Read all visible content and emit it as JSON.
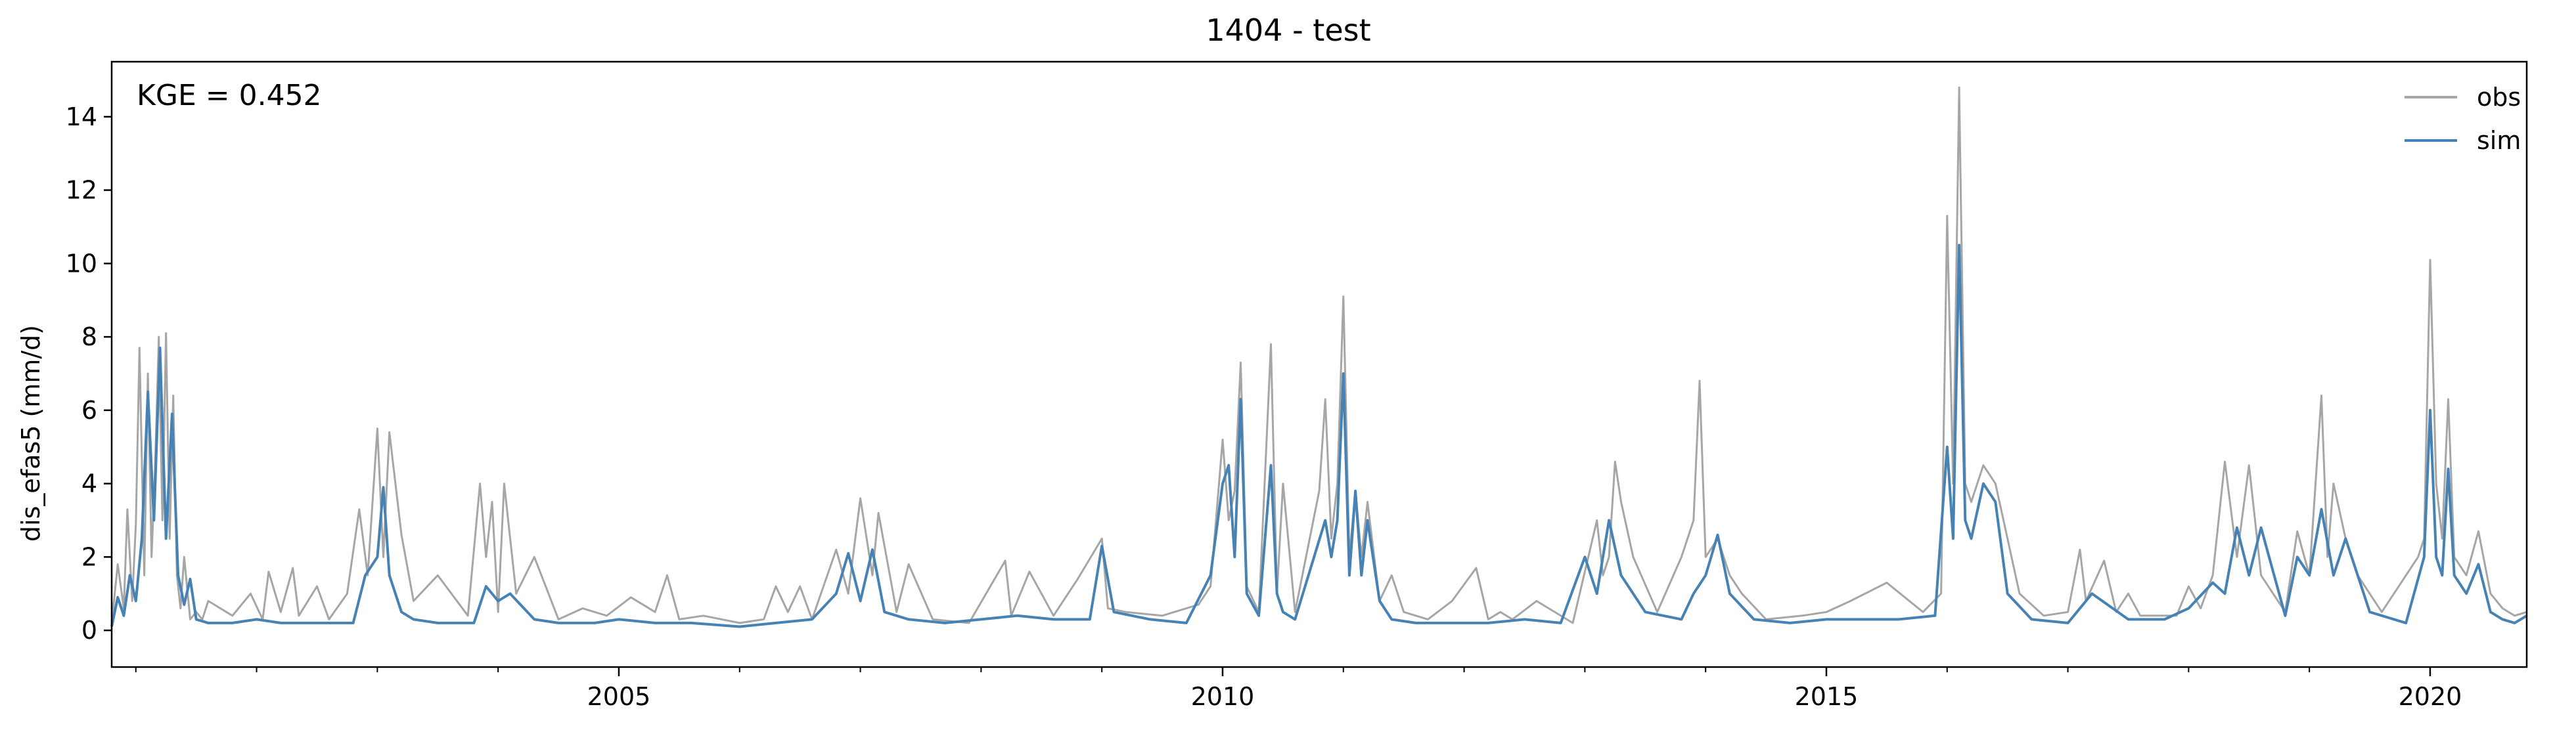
{
  "chart_data": {
    "type": "line",
    "title": "1404 - test",
    "xlabel": "",
    "ylabel": "dis_efas5 (mm/d)",
    "annotation": "KGE = 0.452",
    "xlim": [
      2000.8,
      2020.8
    ],
    "ylim": [
      -1,
      15.5
    ],
    "x_ticks": [
      2005,
      2010,
      2015,
      2020
    ],
    "x_tick_labels": [
      "2005",
      "2010",
      "2015",
      "2020"
    ],
    "y_ticks": [
      0,
      2,
      4,
      6,
      8,
      10,
      12,
      14
    ],
    "y_tick_labels": [
      "0",
      "2",
      "4",
      "6",
      "8",
      "10",
      "12",
      "14"
    ],
    "grid": false,
    "legend_position": "top-right",
    "series": [
      {
        "name": "obs",
        "color": "#a6a6a6",
        "x": [
          2000.8,
          2000.85,
          2000.9,
          2000.93,
          2000.97,
          2001.0,
          2001.03,
          2001.07,
          2001.1,
          2001.13,
          2001.16,
          2001.19,
          2001.22,
          2001.25,
          2001.28,
          2001.31,
          2001.34,
          2001.37,
          2001.4,
          2001.45,
          2001.5,
          2001.55,
          2001.6,
          2001.8,
          2001.95,
          2002.05,
          2002.1,
          2002.2,
          2002.3,
          2002.35,
          2002.5,
          2002.6,
          2002.75,
          2002.85,
          2002.92,
          2003.0,
          2003.05,
          2003.1,
          2003.2,
          2003.3,
          2003.5,
          2003.75,
          2003.85,
          2003.9,
          2003.95,
          2004.0,
          2004.05,
          2004.15,
          2004.3,
          2004.5,
          2004.7,
          2004.9,
          2005.1,
          2005.3,
          2005.4,
          2005.5,
          2005.7,
          2006.0,
          2006.2,
          2006.3,
          2006.4,
          2006.5,
          2006.6,
          2006.8,
          2006.9,
          2007.0,
          2007.1,
          2007.15,
          2007.3,
          2007.4,
          2007.6,
          2007.9,
          2008.2,
          2008.25,
          2008.4,
          2008.6,
          2008.8,
          2009.0,
          2009.05,
          2009.2,
          2009.5,
          2009.8,
          2009.9,
          2010.0,
          2010.05,
          2010.1,
          2010.15,
          2010.2,
          2010.3,
          2010.4,
          2010.45,
          2010.5,
          2010.6,
          2010.8,
          2010.85,
          2010.9,
          2010.95,
          2011.0,
          2011.05,
          2011.1,
          2011.15,
          2011.2,
          2011.3,
          2011.4,
          2011.5,
          2011.7,
          2011.9,
          2012.1,
          2012.2,
          2012.3,
          2012.4,
          2012.6,
          2012.9,
          2013.1,
          2013.15,
          2013.2,
          2013.25,
          2013.3,
          2013.4,
          2013.6,
          2013.8,
          2013.9,
          2013.95,
          2014.0,
          2014.1,
          2014.2,
          2014.3,
          2014.5,
          2014.8,
          2015.0,
          2015.2,
          2015.5,
          2015.8,
          2015.95,
          2016.0,
          2016.05,
          2016.1,
          2016.15,
          2016.2,
          2016.3,
          2016.4,
          2016.5,
          2016.6,
          2016.8,
          2017.0,
          2017.1,
          2017.15,
          2017.3,
          2017.4,
          2017.5,
          2017.6,
          2017.9,
          2018.0,
          2018.1,
          2018.2,
          2018.3,
          2018.4,
          2018.5,
          2018.6,
          2018.8,
          2018.9,
          2019.0,
          2019.1,
          2019.15,
          2019.2,
          2019.3,
          2019.4,
          2019.6,
          2019.9,
          2019.95,
          2020.0,
          2020.05,
          2020.1,
          2020.15,
          2020.2,
          2020.3,
          2020.4,
          2020.5,
          2020.6,
          2020.7,
          2020.8
        ],
        "y": [
          0.2,
          1.8,
          0.6,
          3.3,
          0.8,
          2.9,
          7.7,
          1.5,
          7.0,
          2.0,
          4.5,
          8.0,
          3.0,
          8.1,
          2.5,
          6.4,
          1.5,
          0.6,
          2.0,
          0.3,
          0.5,
          0.3,
          0.8,
          0.4,
          1.0,
          0.3,
          1.6,
          0.5,
          1.7,
          0.4,
          1.2,
          0.3,
          1.0,
          3.3,
          1.5,
          5.5,
          2.0,
          5.4,
          2.6,
          0.8,
          1.5,
          0.4,
          4.0,
          2.0,
          3.5,
          0.5,
          4.0,
          1.0,
          2.0,
          0.3,
          0.6,
          0.4,
          0.9,
          0.5,
          1.5,
          0.3,
          0.4,
          0.2,
          0.3,
          1.2,
          0.5,
          1.2,
          0.3,
          2.2,
          1.0,
          3.6,
          1.5,
          3.2,
          0.5,
          1.8,
          0.3,
          0.2,
          1.9,
          0.4,
          1.6,
          0.4,
          1.4,
          2.5,
          0.6,
          0.5,
          0.4,
          0.7,
          1.2,
          5.2,
          3.0,
          3.8,
          7.3,
          1.2,
          0.5,
          7.8,
          1.0,
          4.0,
          0.5,
          3.8,
          6.3,
          2.5,
          4.0,
          9.1,
          2.0,
          3.8,
          2.0,
          3.5,
          0.8,
          1.5,
          0.5,
          0.3,
          0.8,
          1.7,
          0.3,
          0.5,
          0.3,
          0.8,
          0.2,
          3.0,
          1.5,
          2.0,
          4.6,
          3.5,
          2.0,
          0.5,
          2.0,
          3.0,
          6.8,
          2.0,
          2.5,
          1.5,
          1.0,
          0.3,
          0.4,
          0.5,
          0.8,
          1.3,
          0.5,
          1.0,
          11.3,
          4.0,
          14.8,
          4.0,
          3.5,
          4.5,
          4.0,
          2.5,
          1.0,
          0.4,
          0.5,
          2.2,
          0.8,
          1.9,
          0.5,
          1.0,
          0.4,
          0.4,
          1.2,
          0.6,
          1.5,
          4.6,
          2.0,
          4.5,
          1.5,
          0.5,
          2.7,
          1.5,
          6.4,
          2.0,
          4.0,
          2.5,
          1.5,
          0.5,
          2.0,
          2.5,
          10.1,
          4.0,
          2.5,
          6.3,
          2.0,
          1.5,
          2.7,
          1.0,
          0.6,
          0.4,
          0.5
        ]
      },
      {
        "name": "sim",
        "color": "#4682b4",
        "x": [
          2000.8,
          2000.85,
          2000.9,
          2000.95,
          2001.0,
          2001.05,
          2001.1,
          2001.15,
          2001.2,
          2001.25,
          2001.3,
          2001.35,
          2001.4,
          2001.45,
          2001.5,
          2001.6,
          2001.8,
          2002.0,
          2002.2,
          2002.4,
          2002.6,
          2002.8,
          2002.9,
          2003.0,
          2003.05,
          2003.1,
          2003.2,
          2003.3,
          2003.5,
          2003.8,
          2003.9,
          2004.0,
          2004.1,
          2004.3,
          2004.5,
          2004.8,
          2005.0,
          2005.3,
          2005.6,
          2006.0,
          2006.3,
          2006.6,
          2006.8,
          2006.9,
          2007.0,
          2007.1,
          2007.2,
          2007.4,
          2007.7,
          2008.0,
          2008.3,
          2008.6,
          2008.9,
          2009.0,
          2009.1,
          2009.4,
          2009.7,
          2009.9,
          2010.0,
          2010.05,
          2010.1,
          2010.15,
          2010.2,
          2010.3,
          2010.4,
          2010.45,
          2010.5,
          2010.6,
          2010.85,
          2010.9,
          2010.95,
          2011.0,
          2011.05,
          2011.1,
          2011.15,
          2011.2,
          2011.3,
          2011.4,
          2011.6,
          2011.9,
          2012.2,
          2012.5,
          2012.8,
          2013.0,
          2013.1,
          2013.2,
          2013.3,
          2013.5,
          2013.8,
          2013.9,
          2014.0,
          2014.1,
          2014.2,
          2014.4,
          2014.7,
          2015.0,
          2015.3,
          2015.6,
          2015.9,
          2016.0,
          2016.05,
          2016.1,
          2016.15,
          2016.2,
          2016.3,
          2016.4,
          2016.5,
          2016.7,
          2017.0,
          2017.2,
          2017.5,
          2017.8,
          2018.0,
          2018.2,
          2018.3,
          2018.4,
          2018.5,
          2018.6,
          2018.8,
          2018.9,
          2019.0,
          2019.1,
          2019.2,
          2019.3,
          2019.5,
          2019.8,
          2019.95,
          2020.0,
          2020.05,
          2020.1,
          2020.15,
          2020.2,
          2020.3,
          2020.4,
          2020.5,
          2020.6,
          2020.7,
          2020.8
        ],
        "y": [
          0.1,
          0.9,
          0.4,
          1.5,
          0.8,
          2.5,
          6.5,
          3.0,
          7.7,
          2.5,
          5.9,
          1.5,
          0.7,
          1.4,
          0.3,
          0.2,
          0.2,
          0.3,
          0.2,
          0.2,
          0.2,
          0.2,
          1.5,
          2.0,
          3.9,
          1.5,
          0.5,
          0.3,
          0.2,
          0.2,
          1.2,
          0.8,
          1.0,
          0.3,
          0.2,
          0.2,
          0.3,
          0.2,
          0.2,
          0.1,
          0.2,
          0.3,
          1.0,
          2.1,
          0.8,
          2.2,
          0.5,
          0.3,
          0.2,
          0.3,
          0.4,
          0.3,
          0.3,
          2.3,
          0.5,
          0.3,
          0.2,
          1.5,
          4.0,
          4.5,
          2.0,
          6.3,
          1.0,
          0.4,
          4.5,
          1.0,
          0.5,
          0.3,
          3.0,
          2.0,
          3.0,
          7.0,
          1.5,
          3.8,
          1.5,
          3.0,
          0.8,
          0.3,
          0.2,
          0.2,
          0.2,
          0.3,
          0.2,
          2.0,
          1.0,
          3.0,
          1.5,
          0.5,
          0.3,
          1.0,
          1.5,
          2.6,
          1.0,
          0.3,
          0.2,
          0.3,
          0.3,
          0.3,
          0.4,
          5.0,
          2.5,
          10.5,
          3.0,
          2.5,
          4.0,
          3.5,
          1.0,
          0.3,
          0.2,
          1.0,
          0.3,
          0.3,
          0.6,
          1.3,
          1.0,
          2.8,
          1.5,
          2.8,
          0.4,
          2.0,
          1.5,
          3.3,
          1.5,
          2.5,
          0.5,
          0.2,
          2.0,
          6.0,
          2.0,
          1.5,
          4.4,
          1.5,
          1.0,
          1.8,
          0.5,
          0.3,
          0.2,
          0.4
        ]
      }
    ]
  }
}
